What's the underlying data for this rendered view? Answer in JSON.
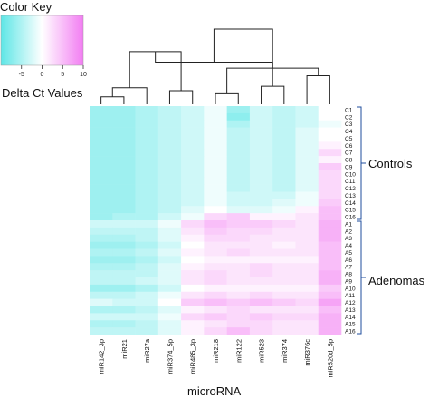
{
  "chart_data": {
    "type": "heatmap",
    "color_key": {
      "title": "Color Key",
      "caption": "Delta Ct Values",
      "ticks": [
        "-5",
        "0",
        "5",
        "10"
      ],
      "range": [
        -10,
        10
      ],
      "colors": {
        "low": "#5ee6e6",
        "mid": "#ffffff",
        "high": "#f27df2"
      }
    },
    "xlabel": "microRNA",
    "columns": [
      "miR142_3p",
      "miR21",
      "miR27a",
      "miR374_5p",
      "miR485_3p",
      "miR218",
      "miR122",
      "miR523",
      "miR374",
      "miR376c",
      "miR520d_5p"
    ],
    "rows": [
      "C1",
      "C2",
      "C3",
      "C4",
      "C5",
      "C6",
      "C7",
      "C8",
      "C9",
      "C10",
      "C11",
      "C12",
      "C13",
      "C14",
      "C15",
      "C16",
      "A1",
      "A2",
      "A3",
      "A4",
      "A5",
      "A6",
      "A7",
      "A8",
      "A9",
      "A10",
      "A11",
      "A12",
      "A13",
      "A14",
      "A15",
      "A16"
    ],
    "groups": [
      {
        "label": "Controls",
        "rows": [
          "C1",
          "C2",
          "C3",
          "C4",
          "C5",
          "C6",
          "C7",
          "C8",
          "C9",
          "C10",
          "C11",
          "C12",
          "C13",
          "C14",
          "C15",
          "C16"
        ]
      },
      {
        "label": "Adenomas",
        "rows": [
          "A1",
          "A2",
          "A3",
          "A4",
          "A5",
          "A6",
          "A7",
          "A8",
          "A9",
          "A10",
          "A11",
          "A12",
          "A13",
          "A14",
          "A15",
          "A16"
        ]
      }
    ],
    "values": [
      [
        -6,
        -6,
        -5,
        -4,
        -3,
        -1,
        -6,
        -3,
        -4,
        -3,
        0
      ],
      [
        -6,
        -6,
        -5,
        -4,
        -3,
        -1,
        -7,
        -3,
        -4,
        -3,
        0
      ],
      [
        -6,
        -6,
        -5,
        -4,
        -3,
        -1,
        -5,
        -3,
        -4,
        -3,
        -1
      ],
      [
        -6,
        -6,
        -5,
        -4,
        -3,
        -1,
        -4,
        -3,
        -4,
        -2,
        0
      ],
      [
        -6,
        -6,
        -5,
        -4,
        -3,
        -1,
        -4,
        -3,
        -4,
        -2,
        0
      ],
      [
        -6,
        -6,
        -5,
        -4,
        -3,
        -1,
        -4,
        -3,
        -4,
        -2,
        1
      ],
      [
        -6,
        -6,
        -5,
        -4,
        -3,
        -1,
        -4,
        -3,
        -4,
        -2,
        3
      ],
      [
        -6,
        -6,
        -5,
        -4,
        -3,
        -1,
        -4,
        -3,
        -4,
        -2,
        1
      ],
      [
        -6,
        -6,
        -5,
        -4,
        -3,
        -1,
        -4,
        -3,
        -4,
        -2,
        4
      ],
      [
        -6,
        -6,
        -5,
        -4,
        -3,
        -1,
        -4,
        -3,
        -4,
        -2,
        3
      ],
      [
        -6,
        -6,
        -5,
        -4,
        -3,
        -1,
        -4,
        -3,
        -4,
        -2,
        3
      ],
      [
        -6,
        -6,
        -5,
        -4,
        -3,
        -1,
        -4,
        -3,
        -4,
        -2,
        3
      ],
      [
        -6,
        -6,
        -5,
        -4,
        -3,
        -1,
        -3,
        -3,
        -3,
        -1,
        3
      ],
      [
        -6,
        -6,
        -5,
        -4,
        -3,
        -1,
        -3,
        -3,
        -2,
        -1,
        4
      ],
      [
        -6,
        -6,
        -5,
        -4,
        -2,
        0,
        -2,
        -2,
        -1,
        1,
        5
      ],
      [
        -6,
        -5,
        -5,
        -3,
        -1,
        3,
        4,
        1,
        1,
        2,
        5
      ],
      [
        -3,
        -3,
        -3,
        -1,
        3,
        5,
        4,
        4,
        3,
        2,
        6
      ],
      [
        -4,
        -4,
        -4,
        -2,
        2,
        4,
        3,
        3,
        2,
        2,
        6
      ],
      [
        -5,
        -5,
        -4,
        -2,
        1,
        3,
        3,
        2,
        2,
        2,
        6
      ],
      [
        -6,
        -6,
        -5,
        -3,
        0,
        2,
        2,
        2,
        1,
        2,
        5
      ],
      [
        -5,
        -5,
        -4,
        -2,
        1,
        2,
        3,
        2,
        2,
        2,
        5
      ],
      [
        -6,
        -6,
        -5,
        -3,
        0,
        1,
        1,
        1,
        1,
        1,
        5
      ],
      [
        -5,
        -5,
        -4,
        -2,
        1,
        2,
        2,
        3,
        2,
        2,
        5
      ],
      [
        -4,
        -4,
        -4,
        -2,
        2,
        3,
        2,
        3,
        2,
        2,
        6
      ],
      [
        -4,
        -4,
        -3,
        -2,
        2,
        3,
        2,
        2,
        2,
        2,
        6
      ],
      [
        -6,
        -6,
        -5,
        -3,
        0,
        1,
        1,
        1,
        1,
        1,
        4
      ],
      [
        -4,
        -4,
        -3,
        -1,
        2,
        3,
        2,
        3,
        2,
        2,
        5
      ],
      [
        -2,
        -3,
        -3,
        0,
        4,
        5,
        4,
        5,
        4,
        3,
        7
      ],
      [
        -5,
        -5,
        -4,
        -2,
        1,
        2,
        3,
        2,
        2,
        2,
        5
      ],
      [
        -3,
        -3,
        -3,
        -1,
        3,
        4,
        3,
        4,
        3,
        3,
        6
      ],
      [
        -5,
        -5,
        -4,
        -2,
        1,
        2,
        3,
        3,
        2,
        2,
        6
      ],
      [
        -4,
        -4,
        -4,
        -2,
        1,
        3,
        5,
        3,
        2,
        2,
        6
      ]
    ]
  }
}
